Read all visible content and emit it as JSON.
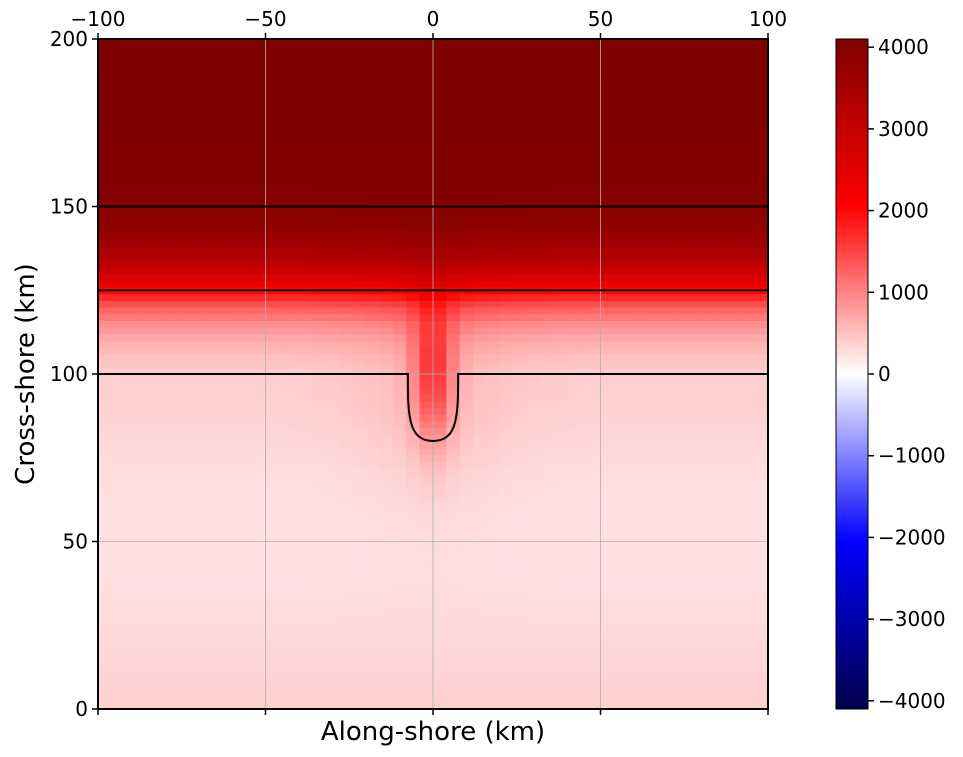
{
  "chart_data": {
    "type": "heatmap",
    "title": "",
    "xlabel": "Along-shore (km)",
    "ylabel": "Cross-shore (km)",
    "xlim": [
      -100,
      100
    ],
    "ylim": [
      0,
      200
    ],
    "x_ticks": [
      -100,
      -50,
      0,
      50,
      100
    ],
    "x_tick_labels": [
      "−100",
      "−50",
      "0",
      "50",
      "100"
    ],
    "y_ticks": [
      0,
      50,
      100,
      150,
      200
    ],
    "y_tick_labels": [
      "0",
      "50",
      "100",
      "150",
      "200"
    ],
    "grid": true,
    "colorbar": {
      "range": [
        -4100,
        4100
      ],
      "ticks": [
        4000,
        3000,
        2000,
        1000,
        0,
        -1000,
        -2000,
        -3000,
        -4000
      ],
      "tick_labels": [
        "4000",
        "3000",
        "2000",
        "1000",
        "0",
        "−1000",
        "−2000",
        "−3000",
        "−4000"
      ],
      "colormap": "seismic",
      "colors": [
        "#00004c",
        "#0000ff",
        "#ffffff",
        "#ff0000",
        "#800000"
      ]
    },
    "field_profile": {
      "y": [
        0,
        10,
        25,
        40,
        55,
        70,
        80,
        90,
        100,
        105,
        110,
        115,
        120,
        125,
        130,
        135,
        140,
        145,
        150,
        160,
        175,
        200
      ],
      "value": [
        380,
        350,
        300,
        250,
        240,
        270,
        320,
        370,
        400,
        500,
        650,
        900,
        1300,
        2000,
        2800,
        3300,
        3650,
        3850,
        4000,
        4050,
        4080,
        4100
      ]
    },
    "canyon_anomaly": {
      "center_x": 0,
      "center_y": 100,
      "x_half_width": 6,
      "y_half_extent": 20,
      "peak_value": 1100
    },
    "contours": {
      "levels_y": [
        150,
        125
      ],
      "shelf_break": {
        "y": 100,
        "canyon": {
          "x_left": -7.5,
          "x_right": 7.5,
          "bottom_y": 80
        }
      },
      "color": "#000000"
    }
  }
}
